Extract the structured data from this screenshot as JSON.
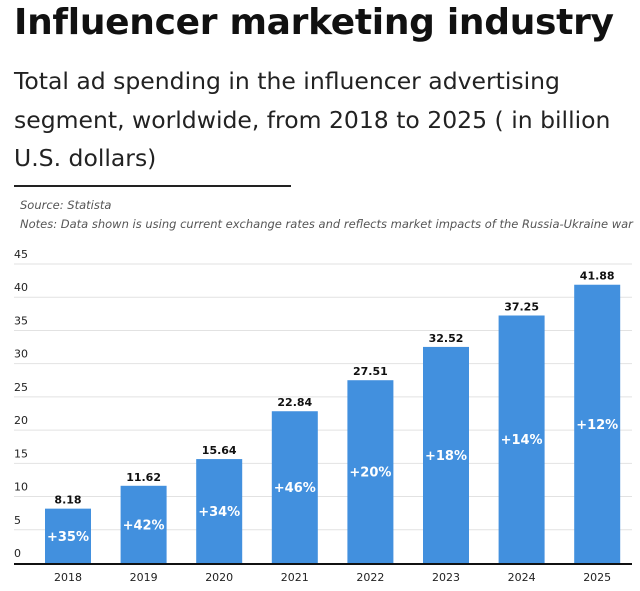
{
  "chart_data": {
    "type": "bar",
    "title": "Influencer marketing industry",
    "subtitle": "Total ad spending in the influencer advertising segment, worldwide, from 2018 to 2025 ( in billion U.S. dollars)",
    "source": "Source: Statista",
    "notes": "Notes: Data shown is using current exchange rates and reflects market impacts of the Russia-Ukraine war",
    "categories": [
      "2018",
      "2019",
      "2020",
      "2021",
      "2022",
      "2023",
      "2024",
      "2025"
    ],
    "values": [
      8.18,
      11.62,
      15.64,
      22.84,
      27.51,
      32.52,
      37.25,
      41.88
    ],
    "value_labels": [
      "8.18",
      "11.62",
      "15.64",
      "22.84",
      "27.51",
      "32.52",
      "37.25",
      "41.88"
    ],
    "growth_labels": [
      "+35%",
      "+42%",
      "+34%",
      "+46%",
      "+20%",
      "+18%",
      "+14%",
      "+12%"
    ],
    "yticks": [
      0,
      5,
      10,
      15,
      20,
      25,
      30,
      35,
      40,
      45
    ],
    "ylim": [
      0,
      45
    ],
    "grid": true,
    "bar_color": "#4290de"
  }
}
